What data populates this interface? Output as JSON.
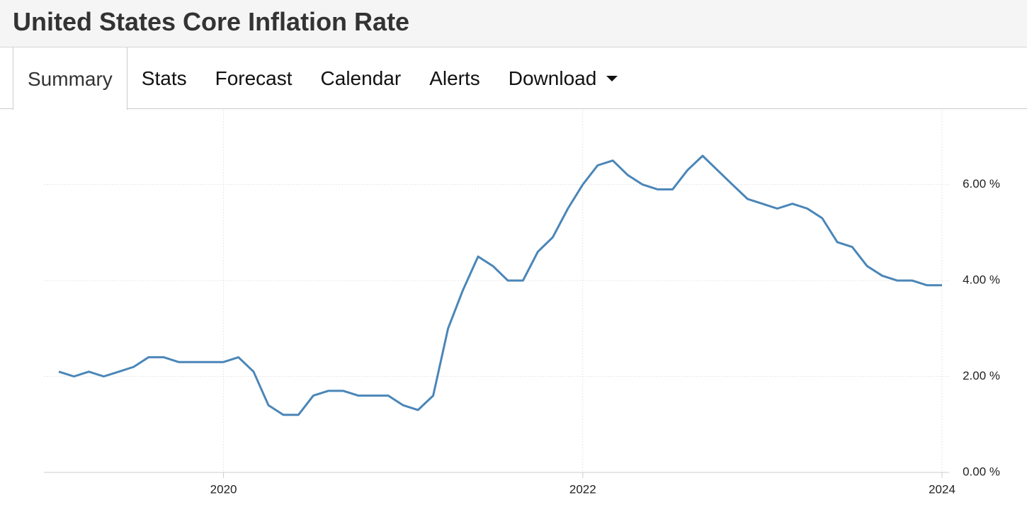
{
  "header": {
    "title": "United States Core Inflation Rate"
  },
  "tabs": [
    "Summary",
    "Stats",
    "Forecast",
    "Calendar",
    "Alerts",
    "Download"
  ],
  "chart_data": {
    "type": "line",
    "color": "#4a86b8",
    "x": [
      2019.083,
      2019.167,
      2019.25,
      2019.333,
      2019.417,
      2019.5,
      2019.583,
      2019.667,
      2019.75,
      2019.833,
      2019.917,
      2020,
      2020.083,
      2020.167,
      2020.25,
      2020.333,
      2020.417,
      2020.5,
      2020.583,
      2020.667,
      2020.75,
      2020.833,
      2020.917,
      2021,
      2021.083,
      2021.167,
      2021.25,
      2021.333,
      2021.417,
      2021.5,
      2021.583,
      2021.667,
      2021.75,
      2021.833,
      2021.917,
      2022,
      2022.083,
      2022.167,
      2022.25,
      2022.333,
      2022.417,
      2022.5,
      2022.583,
      2022.667,
      2022.75,
      2022.833,
      2022.917,
      2023,
      2023.083,
      2023.167,
      2023.25,
      2023.333,
      2023.417,
      2023.5,
      2023.583,
      2023.667,
      2023.75,
      2023.833,
      2023.917,
      2024
    ],
    "values": [
      2.1,
      2.0,
      2.1,
      2.0,
      2.1,
      2.2,
      2.4,
      2.4,
      2.3,
      2.3,
      2.3,
      2.3,
      2.4,
      2.1,
      1.4,
      1.2,
      1.2,
      1.6,
      1.7,
      1.7,
      1.6,
      1.6,
      1.6,
      1.4,
      1.3,
      1.6,
      3.0,
      3.8,
      4.5,
      4.3,
      4.0,
      4.0,
      4.6,
      4.9,
      5.5,
      6.0,
      6.4,
      6.5,
      6.2,
      6.0,
      5.9,
      5.9,
      6.3,
      6.6,
      6.3,
      6.0,
      5.7,
      5.6,
      5.5,
      5.6,
      5.5,
      5.3,
      4.8,
      4.7,
      4.3,
      4.1,
      4.0,
      4.0,
      3.9,
      3.9
    ],
    "xlim": [
      2019,
      2024
    ],
    "xticks": [
      2020,
      2022,
      2024
    ],
    "ylim": [
      0,
      7.5
    ],
    "yticks": [
      {
        "value": 0,
        "label": "0.00 %"
      },
      {
        "value": 2,
        "label": "2.00 %"
      },
      {
        "value": 4,
        "label": "4.00 %"
      },
      {
        "value": 6,
        "label": "6.00 %"
      }
    ],
    "grid": true
  }
}
